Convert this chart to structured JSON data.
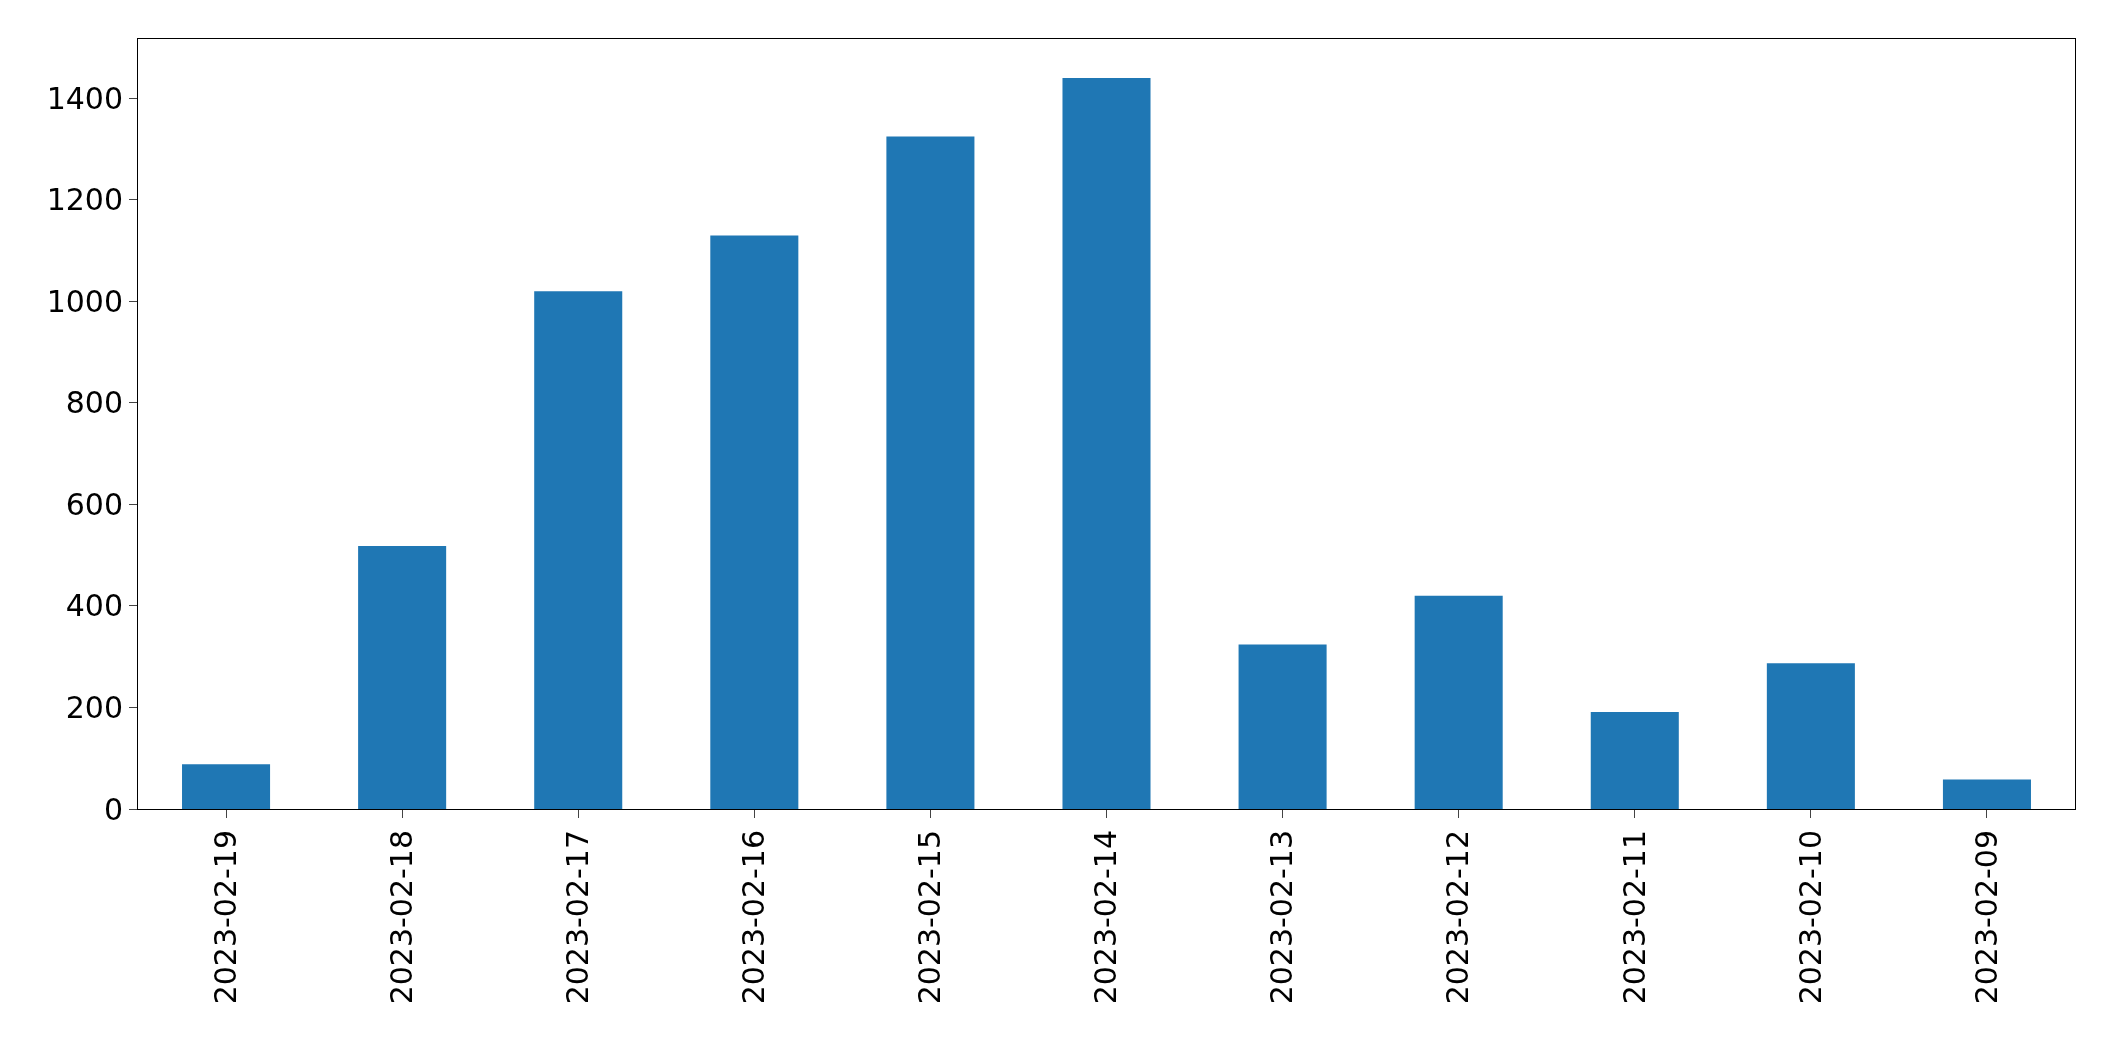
{
  "chart_data": {
    "type": "bar",
    "categories": [
      "2023-02-19",
      "2023-02-18",
      "2023-02-17",
      "2023-02-16",
      "2023-02-15",
      "2023-02-14",
      "2023-02-13",
      "2023-02-12",
      "2023-02-11",
      "2023-02-10",
      "2023-02-09"
    ],
    "values": [
      88,
      518,
      1020,
      1130,
      1325,
      1440,
      324,
      420,
      191,
      287,
      58
    ],
    "color": "#1f77b4",
    "ylim": [
      0,
      1517
    ],
    "yticks": [
      0,
      200,
      400,
      600,
      800,
      1000,
      1200,
      1400
    ]
  }
}
